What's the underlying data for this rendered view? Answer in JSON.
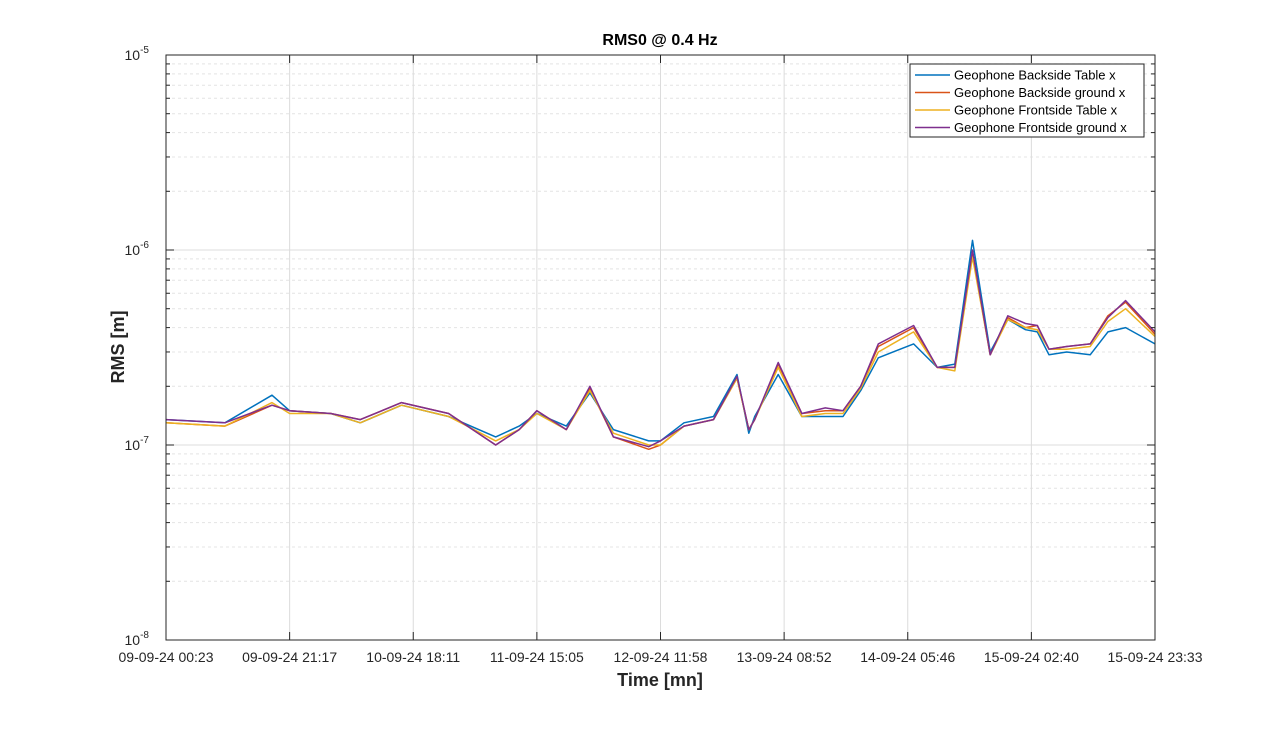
{
  "chart_data": {
    "type": "line",
    "title": "RMS0 @ 0.4 Hz",
    "xlabel": "Time [mn]",
    "ylabel": "RMS [m]",
    "yscale": "log",
    "ylim": [
      1e-08,
      1e-05
    ],
    "xlim": [
      0,
      168
    ],
    "x_tick_labels": [
      "09-09-24 00:23",
      "09-09-24 21:17",
      "10-09-24 18:11",
      "11-09-24 15:05",
      "12-09-24 11:58",
      "13-09-24 08:52",
      "14-09-24 05:46",
      "15-09-24 02:40",
      "15-09-24 23:33"
    ],
    "y_tick_labels": [
      {
        "base": "10",
        "exp": "-8",
        "value": 1e-08
      },
      {
        "base": "10",
        "exp": "-7",
        "value": 1e-07
      },
      {
        "base": "10",
        "exp": "-6",
        "value": 1e-06
      },
      {
        "base": "10",
        "exp": "-5",
        "value": 1e-05
      }
    ],
    "grid": true,
    "legend_position": "top-right",
    "x": [
      0,
      10,
      18,
      21,
      28,
      33,
      40,
      48,
      56,
      60,
      63,
      68,
      72,
      76,
      82,
      84,
      88,
      93,
      97,
      99,
      100,
      104,
      108,
      112,
      115,
      118,
      121,
      127,
      131,
      134,
      137,
      140,
      143,
      146,
      148,
      150,
      153,
      157,
      160,
      163,
      168
    ],
    "series": [
      {
        "name": "Geophone Backside Table x",
        "color": "#0072BD",
        "y": [
          1.35e-07,
          1.3e-07,
          1.8e-07,
          1.5e-07,
          1.45e-07,
          1.3e-07,
          1.6e-07,
          1.4e-07,
          1.1e-07,
          1.25e-07,
          1.45e-07,
          1.25e-07,
          1.85e-07,
          1.2e-07,
          1.05e-07,
          1.05e-07,
          1.3e-07,
          1.4e-07,
          2.3e-07,
          1.15e-07,
          1.4e-07,
          2.3e-07,
          1.4e-07,
          1.4e-07,
          1.4e-07,
          1.9e-07,
          2.8e-07,
          3.3e-07,
          2.5e-07,
          2.6e-07,
          1.12e-06,
          3e-07,
          4.4e-07,
          3.9e-07,
          3.8e-07,
          2.9e-07,
          3e-07,
          2.9e-07,
          3.8e-07,
          4e-07,
          3.3e-07
        ]
      },
      {
        "name": "Geophone Backside ground x",
        "color": "#D95319",
        "y": [
          1.3e-07,
          1.25e-07,
          1.6e-07,
          1.5e-07,
          1.45e-07,
          1.35e-07,
          1.65e-07,
          1.45e-07,
          1e-07,
          1.2e-07,
          1.5e-07,
          1.2e-07,
          1.95e-07,
          1.1e-07,
          9.5e-08,
          1e-07,
          1.25e-07,
          1.35e-07,
          2.2e-07,
          1.2e-07,
          1.35e-07,
          2.6e-07,
          1.45e-07,
          1.5e-07,
          1.5e-07,
          2e-07,
          3.2e-07,
          4e-07,
          2.5e-07,
          2.5e-07,
          9.5e-07,
          2.9e-07,
          4.5e-07,
          4e-07,
          4.1e-07,
          3.1e-07,
          3.2e-07,
          3.3e-07,
          4.6e-07,
          5.4e-07,
          3.7e-07
        ]
      },
      {
        "name": "Geophone Frontside Table x",
        "color": "#EDB120",
        "y": [
          1.3e-07,
          1.25e-07,
          1.65e-07,
          1.45e-07,
          1.45e-07,
          1.3e-07,
          1.6e-07,
          1.4e-07,
          1.05e-07,
          1.2e-07,
          1.45e-07,
          1.2e-07,
          1.9e-07,
          1.15e-07,
          1e-07,
          1e-07,
          1.25e-07,
          1.35e-07,
          2.2e-07,
          1.2e-07,
          1.35e-07,
          2.5e-07,
          1.4e-07,
          1.45e-07,
          1.45e-07,
          1.95e-07,
          3e-07,
          3.8e-07,
          2.5e-07,
          2.4e-07,
          9.2e-07,
          2.9e-07,
          4.4e-07,
          4e-07,
          3.9e-07,
          3.1e-07,
          3.1e-07,
          3.2e-07,
          4.3e-07,
          5e-07,
          3.6e-07
        ]
      },
      {
        "name": "Geophone Frontside ground x",
        "color": "#7E2F8E",
        "y": [
          1.35e-07,
          1.3e-07,
          1.6e-07,
          1.5e-07,
          1.45e-07,
          1.35e-07,
          1.65e-07,
          1.45e-07,
          1e-07,
          1.2e-07,
          1.5e-07,
          1.2e-07,
          2e-07,
          1.1e-07,
          9.8e-08,
          1.05e-07,
          1.25e-07,
          1.35e-07,
          2.25e-07,
          1.2e-07,
          1.35e-07,
          2.65e-07,
          1.45e-07,
          1.55e-07,
          1.5e-07,
          2e-07,
          3.3e-07,
          4.1e-07,
          2.5e-07,
          2.5e-07,
          1e-06,
          2.9e-07,
          4.6e-07,
          4.2e-07,
          4.1e-07,
          3.1e-07,
          3.2e-07,
          3.3e-07,
          4.5e-07,
          5.5e-07,
          3.8e-07
        ]
      }
    ]
  }
}
